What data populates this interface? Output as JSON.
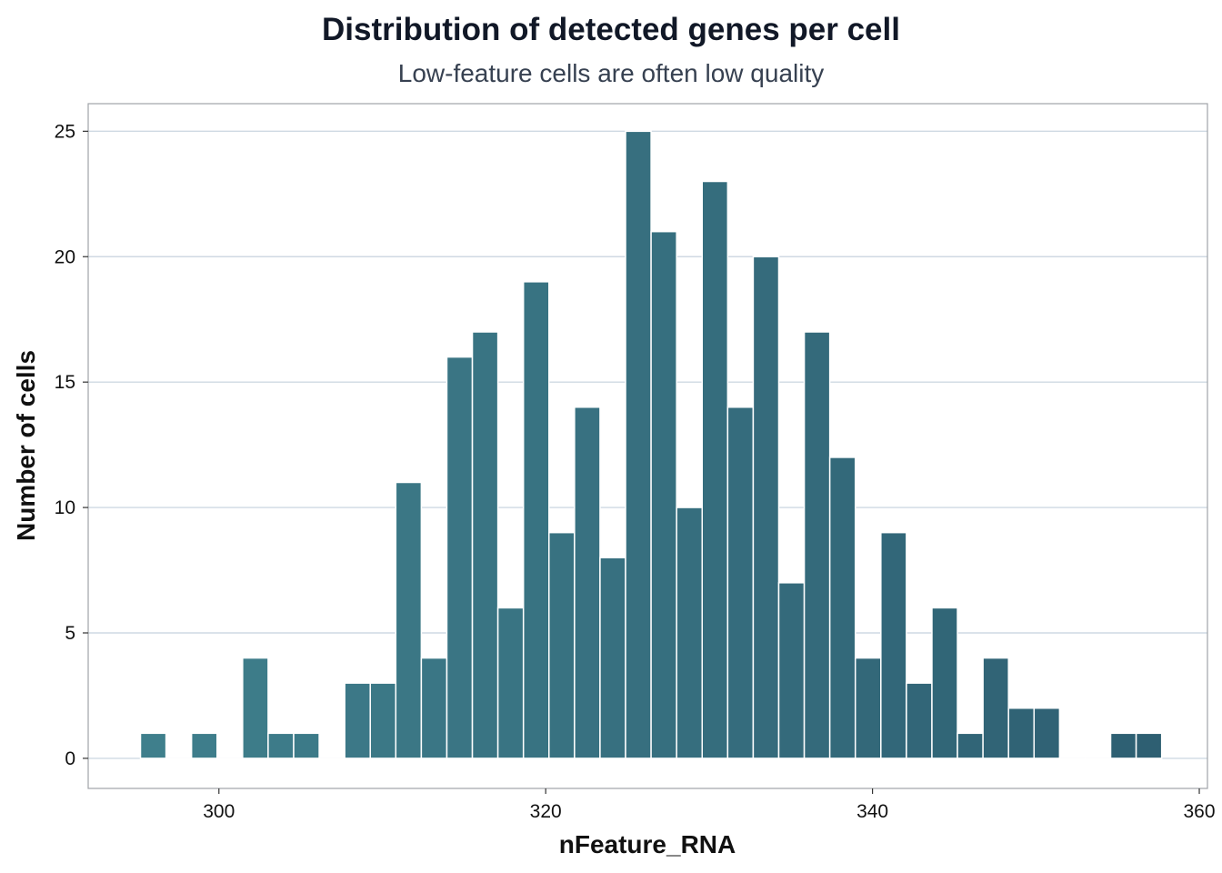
{
  "chart_data": {
    "type": "bar",
    "title": "Distribution of detected genes per cell",
    "subtitle": "Low-feature cells are often low quality",
    "xlabel": "nFeature_RNA",
    "ylabel": "Number of cells",
    "xlim": [
      292,
      360.5
    ],
    "ylim": [
      -1.2,
      26.1
    ],
    "x_ticks": [
      300,
      320,
      340,
      360
    ],
    "y_ticks": [
      0,
      5,
      10,
      15,
      20,
      25
    ],
    "grid": "horizontal",
    "bin_width": 1.5625,
    "bins_start": 295.2,
    "counts": [
      1,
      0,
      1,
      0,
      4,
      1,
      1,
      0,
      3,
      3,
      11,
      4,
      16,
      17,
      6,
      19,
      9,
      14,
      8,
      25,
      21,
      10,
      23,
      14,
      20,
      7,
      17,
      12,
      4,
      9,
      3,
      6,
      1,
      4,
      2,
      2,
      0,
      0,
      1,
      1
    ],
    "bar_color_start": "#3f7f8c",
    "bar_color_end": "#2e5f72",
    "bar_edge_color": "#ffffff",
    "grid_color": "#cfd9e3",
    "frame_color": "#a0a4a8"
  }
}
